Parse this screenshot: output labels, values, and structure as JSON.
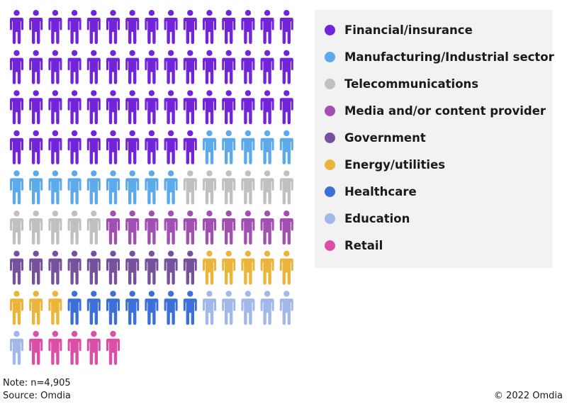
{
  "chart_data": {
    "type": "pictograph",
    "unit": "person-icon",
    "series": [
      {
        "name": "Financial/insurance",
        "count": 55,
        "color": "#7124d9"
      },
      {
        "name": "Manufacturing/Industrial sector",
        "count": 14,
        "color": "#5daaeb"
      },
      {
        "name": "Telecommunications",
        "count": 11,
        "color": "#c0c0c0"
      },
      {
        "name": "Media and/or content provider",
        "count": 10,
        "color": "#a14fb0"
      },
      {
        "name": "Government",
        "count": 10,
        "color": "#76529c"
      },
      {
        "name": "Energy/utilities",
        "count": 8,
        "color": "#ebb43a"
      },
      {
        "name": "Healthcare",
        "count": 7,
        "color": "#3c6fd8"
      },
      {
        "name": "Education",
        "count": 6,
        "color": "#a2b8e8"
      },
      {
        "name": "Retail",
        "count": 5,
        "color": "#db4fa6"
      }
    ]
  },
  "footer": {
    "note": "Note: n=4,905",
    "source": "Source: Omdia",
    "copyright": "© 2022 Omdia"
  }
}
